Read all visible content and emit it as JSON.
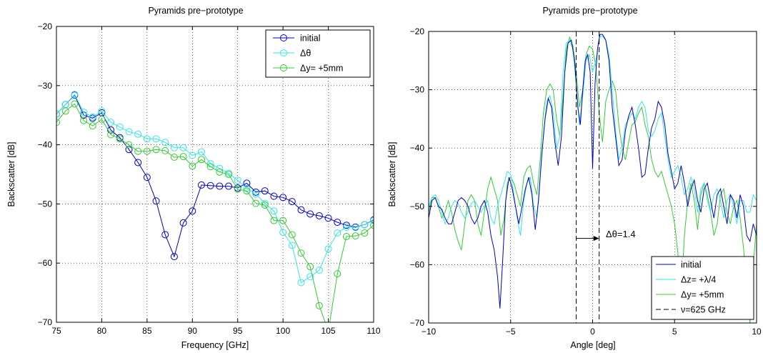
{
  "chart_data": [
    {
      "type": "line",
      "title": "Pyramids pre−prototype",
      "xlabel": "Frequency [GHz]",
      "ylabel": "Backscatter [dB]",
      "xlim": [
        75,
        110
      ],
      "ylim": [
        -70,
        -20
      ],
      "xticks": [
        75,
        80,
        85,
        90,
        95,
        100,
        105,
        110
      ],
      "xtick_labels": [
        "75",
        "80",
        "85",
        "90",
        "95",
        "100",
        "105",
        "110"
      ],
      "yticks": [
        -70,
        -60,
        -50,
        -40,
        -30,
        -20
      ],
      "ytick_labels": [
        "−70",
        "−60",
        "−50",
        "−40",
        "−30",
        "−20"
      ],
      "grid": true,
      "legend_position": "top-right",
      "x": [
        75,
        76,
        77,
        78,
        79,
        80,
        81,
        82,
        83,
        84,
        85,
        86,
        87,
        88,
        89,
        90,
        91,
        92,
        93,
        94,
        95,
        96,
        97,
        98,
        99,
        100,
        101,
        102,
        103,
        104,
        105,
        106,
        107,
        108,
        109,
        110
      ],
      "series": [
        {
          "name": "initial",
          "color": "#0000cc",
          "marker": "circle",
          "values": [
            -34.8,
            -33.2,
            -31.6,
            -35.0,
            -35.5,
            -34.6,
            -37.5,
            -38.8,
            -40.8,
            -43.0,
            -45.5,
            -49.5,
            -55.2,
            -58.9,
            -53.2,
            -51.2,
            -46.8,
            -46.9,
            -47.0,
            -47.0,
            -47.3,
            -46.5,
            -48.0,
            -47.8,
            -48.7,
            -48.9,
            -49.6,
            -51.0,
            -51.7,
            -52.0,
            -52.4,
            -53.1,
            -53.6,
            -53.9,
            -53.5,
            -52.7
          ]
        },
        {
          "name": "Δθ",
          "color": "#33e6e6",
          "marker": "circle",
          "values": [
            -34.8,
            -33.2,
            -31.5,
            -34.5,
            -35.3,
            -34.3,
            -36.2,
            -37.0,
            -37.8,
            -38.2,
            -39.0,
            -39.0,
            -39.6,
            -40.5,
            -40.5,
            -41.8,
            -41.2,
            -43.2,
            -44.0,
            -44.8,
            -46.0,
            -47.4,
            -48.3,
            -49.9,
            -51.2,
            -54.8,
            -57.0,
            -63.3,
            -62.3,
            -61.2,
            -57.6,
            -54.9,
            -53.9,
            -54.0,
            -53.5,
            -52.8
          ]
        },
        {
          "name": "Δy=  +5mm",
          "color": "#33cc33",
          "marker": "circle",
          "values": [
            -36.2,
            -34.3,
            -33.1,
            -35.9,
            -36.8,
            -35.7,
            -38.3,
            -39.0,
            -40.0,
            -41.1,
            -41.1,
            -40.8,
            -41.0,
            -42.1,
            -42.0,
            -43.6,
            -42.5,
            -43.7,
            -44.6,
            -45.0,
            -47.5,
            -47.8,
            -49.9,
            -50.2,
            -52.8,
            -52.8,
            -55.2,
            -58.3,
            -60.6,
            -67.2,
            -71.5,
            -61.8,
            -55.5,
            -55.4,
            -54.9,
            -53.6
          ]
        }
      ]
    },
    {
      "type": "line",
      "title": "Pyramids pre−prototype",
      "xlabel": "Angle [deg]",
      "ylabel": "Backscatter [dB]",
      "xlim": [
        -10,
        10
      ],
      "ylim": [
        -70,
        -20
      ],
      "xticks": [
        -10,
        -5,
        0,
        5,
        10
      ],
      "xtick_labels": [
        "−10",
        "−5",
        "0",
        "5",
        "10"
      ],
      "yticks": [
        -70,
        -60,
        -50,
        -40,
        -30,
        -20
      ],
      "ytick_labels": [
        "−70",
        "−60",
        "−50",
        "−40",
        "−30",
        "−20"
      ],
      "grid": true,
      "legend_position": "bottom-right",
      "annotation": {
        "text": "Δθ=1.4",
        "arrow_from": -1.0,
        "arrow_to": 0.4,
        "y": -55.5
      },
      "series": [
        {
          "name": "initial",
          "color": "#0000cc",
          "style": "solid",
          "x": [
            -10,
            -9.8,
            -9.6,
            -9.4,
            -9.2,
            -9,
            -8.8,
            -8.6,
            -8.4,
            -8.2,
            -8,
            -7.8,
            -7.6,
            -7.4,
            -7.2,
            -7,
            -6.8,
            -6.6,
            -6.4,
            -6.2,
            -6,
            -5.8,
            -5.65,
            -5.5,
            -5.3,
            -5.1,
            -4.9,
            -4.7,
            -4.5,
            -4.3,
            -4.1,
            -3.9,
            -3.7,
            -3.5,
            -3.3,
            -3.1,
            -2.9,
            -2.7,
            -2.5,
            -2.3,
            -2.1,
            -1.9,
            -1.7,
            -1.5,
            -1.3,
            -1.1,
            -0.9,
            -0.75,
            -0.6,
            -0.45,
            -0.3,
            -0.15,
            0,
            0.15,
            0.3,
            0.45,
            0.6,
            0.8,
            1,
            1.2,
            1.4,
            1.6,
            1.8,
            2,
            2.2,
            2.4,
            2.6,
            2.8,
            3,
            3.2,
            3.4,
            3.6,
            3.8,
            4,
            4.2,
            4.4,
            4.6,
            4.8,
            5,
            5.2,
            5.4,
            5.6,
            5.8,
            6,
            6.2,
            6.4,
            6.6,
            6.8,
            7,
            7.2,
            7.4,
            7.6,
            7.8,
            8,
            8.2,
            8.4,
            8.6,
            8.8,
            9,
            9.2,
            9.4,
            9.6,
            9.8,
            10
          ],
          "y": [
            -52,
            -49,
            -48.5,
            -50,
            -50.5,
            -52,
            -53,
            -53,
            -51,
            -49,
            -48.5,
            -49,
            -50,
            -52,
            -53,
            -52,
            -50,
            -49,
            -51,
            -55,
            -57.5,
            -62,
            -67.5,
            -60,
            -49,
            -45,
            -47,
            -50,
            -53,
            -50,
            -47,
            -45,
            -48,
            -54,
            -49,
            -41,
            -35,
            -31.5,
            -33,
            -39,
            -43,
            -38,
            -27,
            -22,
            -21.5,
            -25,
            -33,
            -36,
            -30,
            -25,
            -24,
            -27,
            -43.5,
            -29,
            -23,
            -20.5,
            -20.5,
            -21.5,
            -25,
            -33,
            -38,
            -43,
            -42,
            -37,
            -34.5,
            -33,
            -36,
            -40,
            -45,
            -44.5,
            -40,
            -36.5,
            -35,
            -32,
            -33,
            -36,
            -41,
            -44,
            -47,
            -46,
            -43,
            -46,
            -50,
            -47,
            -45.5,
            -49,
            -51,
            -47,
            -46,
            -49,
            -52,
            -48,
            -47,
            -50,
            -53,
            -48,
            -49,
            -52,
            -48,
            -50,
            -55,
            -56,
            -53,
            -55
          ]
        },
        {
          "name": "Δz= +λ/4",
          "color": "#33e6e6",
          "style": "solid",
          "x": [
            -10,
            -9.8,
            -9.6,
            -9.4,
            -9.2,
            -9,
            -8.8,
            -8.6,
            -8.4,
            -8.2,
            -8,
            -7.8,
            -7.6,
            -7.4,
            -7.2,
            -7,
            -6.8,
            -6.6,
            -6.4,
            -6.2,
            -6,
            -5.8,
            -5.6,
            -5.4,
            -5.2,
            -5,
            -4.8,
            -4.6,
            -4.4,
            -4.2,
            -4,
            -3.8,
            -3.6,
            -3.4,
            -3.2,
            -3,
            -2.8,
            -2.6,
            -2.4,
            -2.2,
            -2,
            -1.8,
            -1.6,
            -1.4,
            -1.2,
            -1,
            -0.8,
            -0.6,
            -0.4,
            -0.2,
            0,
            0.2,
            0.4,
            0.6,
            0.8,
            1,
            1.2,
            1.4,
            1.6,
            1.8,
            2,
            2.2,
            2.4,
            2.6,
            2.8,
            3,
            3.2,
            3.4,
            3.6,
            3.8,
            4,
            4.2,
            4.4,
            4.6,
            4.8,
            5,
            5.2,
            5.4,
            5.6,
            5.8,
            6,
            6.2,
            6.4,
            6.6,
            6.8,
            7,
            7.2,
            7.4,
            7.6,
            7.8,
            8,
            8.2,
            8.4,
            8.6,
            8.8,
            9,
            9.2,
            9.4,
            9.6,
            9.8,
            10
          ],
          "y": [
            -50,
            -48.5,
            -48,
            -49,
            -51,
            -53,
            -52,
            -50,
            -49,
            -49.5,
            -51,
            -52,
            -51,
            -49.5,
            -49,
            -50,
            -51,
            -50,
            -49,
            -52,
            -53,
            -50,
            -48,
            -46,
            -44,
            -44.5,
            -48,
            -52,
            -55,
            -49,
            -46,
            -45,
            -50,
            -52,
            -45,
            -38,
            -32,
            -31,
            -34,
            -40,
            -38,
            -27,
            -22,
            -21.5,
            -23,
            -29,
            -36,
            -31,
            -25,
            -24,
            -27,
            -25,
            -21,
            -20.8,
            -21.5,
            -24,
            -30,
            -37,
            -42,
            -40,
            -36,
            -35,
            -34,
            -35,
            -33,
            -32,
            -33,
            -37,
            -38,
            -37,
            -35,
            -34,
            -38,
            -42,
            -45,
            -44,
            -43,
            -45,
            -48,
            -47,
            -45,
            -47,
            -51,
            -47,
            -46,
            -49,
            -51,
            -48,
            -47,
            -49,
            -52,
            -49,
            -48,
            -50,
            -53,
            -49,
            -49,
            -51,
            -51,
            -48,
            -49
          ]
        },
        {
          "name": "Δy= +5mm",
          "color": "#33cc33",
          "style": "solid",
          "x": [
            -10,
            -9.8,
            -9.6,
            -9.4,
            -9.2,
            -9,
            -8.8,
            -8.6,
            -8.4,
            -8.2,
            -8,
            -7.8,
            -7.6,
            -7.4,
            -7.2,
            -7,
            -6.8,
            -6.6,
            -6.4,
            -6.2,
            -6,
            -5.8,
            -5.6,
            -5.4,
            -5.2,
            -5,
            -4.8,
            -4.6,
            -4.4,
            -4.2,
            -4,
            -3.8,
            -3.6,
            -3.4,
            -3.2,
            -3,
            -2.8,
            -2.6,
            -2.4,
            -2.2,
            -2,
            -1.8,
            -1.6,
            -1.4,
            -1.2,
            -1,
            -0.8,
            -0.6,
            -0.4,
            -0.2,
            0,
            0.2,
            0.4,
            0.6,
            0.8,
            1,
            1.2,
            1.4,
            1.6,
            1.8,
            2,
            2.2,
            2.4,
            2.6,
            2.8,
            3,
            3.2,
            3.4,
            3.6,
            3.8,
            4,
            4.2,
            4.4,
            4.6,
            4.8,
            5,
            5.2,
            5.4,
            5.6,
            5.8,
            6,
            6.2,
            6.4,
            6.6,
            6.8,
            7,
            7.2,
            7.4,
            7.6,
            7.8,
            8,
            8.2,
            8.4,
            8.6,
            8.8,
            9,
            9.2,
            9.4,
            9.6,
            9.8,
            10
          ],
          "y": [
            -51,
            -48.5,
            -48.5,
            -50,
            -52,
            -51,
            -49,
            -51,
            -54,
            -56,
            -57.5,
            -53,
            -49,
            -48,
            -49,
            -53,
            -55,
            -51,
            -47,
            -45,
            -47,
            -49,
            -55,
            -52,
            -46,
            -45,
            -46,
            -48,
            -50,
            -45,
            -43.5,
            -43,
            -46,
            -48,
            -42,
            -34,
            -30,
            -29,
            -30,
            -35,
            -38,
            -31,
            -23,
            -21,
            -22.5,
            -27,
            -33,
            -30,
            -24,
            -22.5,
            -23,
            -26,
            -34,
            -39,
            -32,
            -30,
            -28.5,
            -30,
            -36,
            -40,
            -42,
            -39,
            -36,
            -35.5,
            -34,
            -33,
            -36,
            -38,
            -42,
            -44,
            -45,
            -44,
            -46,
            -48,
            -50,
            -53,
            -58,
            -65,
            -55,
            -49,
            -46,
            -49,
            -54,
            -48,
            -46,
            -48,
            -51,
            -55,
            -53,
            -48,
            -47,
            -51,
            -53,
            -50,
            -49,
            -52,
            -57,
            -63,
            -70,
            -60,
            -53
          ]
        },
        {
          "name": "ν=625 GHz",
          "color": "#000000",
          "style": "dashed",
          "vlines": [
            -1.0,
            0.4
          ],
          "x": [],
          "y": []
        }
      ]
    }
  ]
}
